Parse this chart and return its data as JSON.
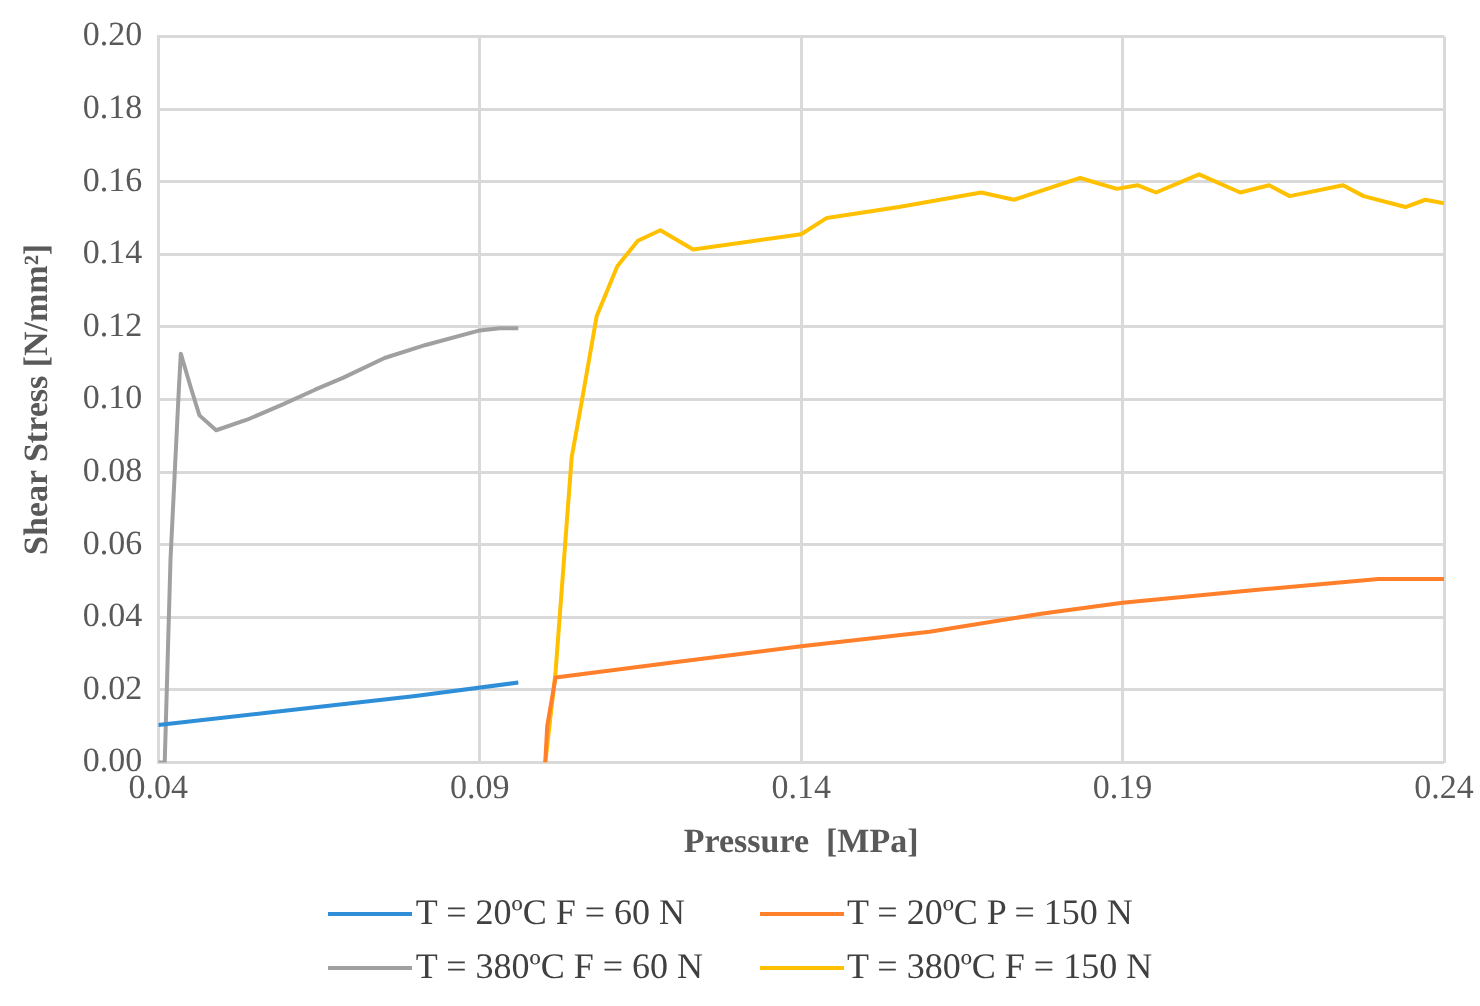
{
  "chart_data": {
    "type": "line",
    "xlabel": "Pressure  [MPa]",
    "ylabel": "Shear Stress [N/mm²]",
    "xlim": [
      0.04,
      0.24
    ],
    "xticks": [
      0.04,
      0.09,
      0.14,
      0.19,
      0.24
    ],
    "ylim": [
      0,
      0.2
    ],
    "yticks": [
      {
        "value": 0,
        "label": "0.00"
      },
      0.02,
      0.04,
      0.06,
      0.08,
      {
        "value": 0.1,
        "label": "0.10"
      },
      0.12,
      0.14,
      0.16,
      0.18,
      {
        "value": 0.2,
        "label": "0.20"
      }
    ],
    "grid": true,
    "legend": "bottom",
    "marker": "none",
    "line_style": "solid",
    "series": [
      {
        "name": "T = 20ºC F = 60 N",
        "color": "#2e8fd8",
        "x": [
          0.04,
          0.06,
          0.08,
          0.096
        ],
        "values": [
          0.0103,
          0.0143,
          0.0183,
          0.022
        ]
      },
      {
        "name": "T = 20ºC P = 150 N",
        "color": "#ff7f2a",
        "x": [
          0.1002,
          0.1005,
          0.1018,
          0.12,
          0.14,
          0.16,
          0.1776,
          0.19,
          0.2106,
          0.2298,
          0.24
        ],
        "values": [
          0,
          0.01,
          0.0234,
          0.0275,
          0.032,
          0.036,
          0.041,
          0.044,
          0.0475,
          0.0505,
          0.0505
        ]
      },
      {
        "name": "T = 380ºC F = 60 N",
        "color": "#a0a0a0",
        "x": [
          0.04,
          0.041,
          0.0419,
          0.0432,
          0.0435,
          0.0451,
          0.0464,
          0.049,
          0.0538,
          0.0592,
          0.0643,
          0.0688,
          0.0752,
          0.0816,
          0.09,
          0.0931,
          0.096
        ],
        "values": [
          0,
          0.0,
          0.056,
          0.103,
          0.1126,
          0.103,
          0.0956,
          0.0915,
          0.0944,
          0.0985,
          0.1026,
          0.106,
          0.1114,
          0.115,
          0.119,
          0.1196,
          0.1196
        ]
      },
      {
        "name": "T = 380ºC F = 150 N",
        "color": "#ffc000",
        "x": [
          0.1002,
          0.1018,
          0.1043,
          0.1059,
          0.1082,
          0.1114,
          0.1146,
          0.1181,
          0.1232,
          0.14,
          0.144,
          0.1552,
          0.168,
          0.1731,
          0.1834,
          0.1891,
          0.1923,
          0.1952,
          0.2019,
          0.2083,
          0.2128,
          0.216,
          0.2243,
          0.2275,
          0.234,
          0.2371,
          0.24
        ],
        "values": [
          0,
          0.025,
          0.084,
          0.0997,
          0.123,
          0.1367,
          0.1437,
          0.1466,
          0.1413,
          0.1455,
          0.15,
          0.153,
          0.157,
          0.155,
          0.161,
          0.158,
          0.159,
          0.157,
          0.162,
          0.157,
          0.159,
          0.156,
          0.159,
          0.156,
          0.153,
          0.155,
          0.154
        ]
      }
    ]
  }
}
